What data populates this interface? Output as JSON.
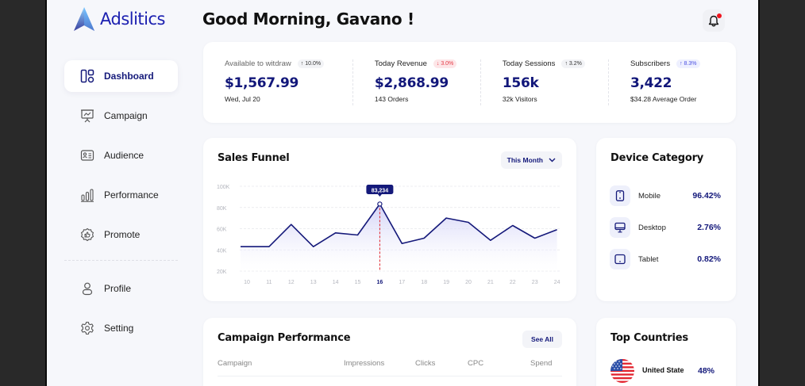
{
  "app": {
    "name": "Adslitics"
  },
  "header": {
    "greeting": "Good Morning, Gavano !",
    "notification_icon": "bell-icon",
    "has_unread": true
  },
  "sidebar": {
    "items": [
      {
        "label": "Dashboard",
        "icon": "dashboard-icon",
        "active": true
      },
      {
        "label": "Campaign",
        "icon": "presentation-chart-icon",
        "active": false
      },
      {
        "label": "Audience",
        "icon": "id-card-icon",
        "active": false
      },
      {
        "label": "Performance",
        "icon": "bar-chart-icon",
        "active": false
      },
      {
        "label": "Promote",
        "icon": "thumbs-up-badge-icon",
        "active": false
      }
    ],
    "bottom_items": [
      {
        "label": "Profile",
        "icon": "user-icon"
      },
      {
        "label": "Setting",
        "icon": "gear-icon"
      }
    ]
  },
  "stats": [
    {
      "label": "Available to witdraw",
      "badge": "↑ 10.0%",
      "trend": "up",
      "value": "$1,567.99",
      "sub": "Wed, Jul 20"
    },
    {
      "label": "Today Revenue",
      "badge": "↓ 3.0%",
      "trend": "down",
      "value": "$2,868.99",
      "sub": "143 Orders"
    },
    {
      "label": "Today Sessions",
      "badge": "↑ 3.2%",
      "trend": "up",
      "value": "156k",
      "sub": "32k Visitors"
    },
    {
      "label": "Subscribers",
      "badge": "↑ 8.3%",
      "trend": "up-accent",
      "value": "3,422",
      "sub": "$34.28 Average Order"
    }
  ],
  "sales_funnel": {
    "title": "Sales Funnel",
    "period": "This Month",
    "tooltip": "83,234"
  },
  "chart_data": {
    "type": "area",
    "title": "Sales Funnel",
    "x": [
      10,
      11,
      12,
      13,
      14,
      15,
      16,
      17,
      18,
      19,
      20,
      21,
      22,
      23,
      24
    ],
    "values": [
      43000,
      43000,
      64000,
      43000,
      56000,
      54000,
      83234,
      46000,
      51000,
      70000,
      66000,
      49000,
      63000,
      51000,
      59000
    ],
    "y_ticks": [
      "20K",
      "40K",
      "60K",
      "80K",
      "100K"
    ],
    "ylim": [
      20000,
      100000
    ],
    "highlight_x": 16,
    "highlight_label": "83,234",
    "grid": true,
    "line_color": "#15197a",
    "highlight_color": "#e0242c"
  },
  "device_category": {
    "title": "Device Category",
    "items": [
      {
        "name": "Mobile",
        "pct": "96.42%",
        "icon": "smartphone-icon"
      },
      {
        "name": "Desktop",
        "pct": "2.76%",
        "icon": "monitor-icon"
      },
      {
        "name": "Tablet",
        "pct": "0.82%",
        "icon": "tablet-icon"
      }
    ]
  },
  "campaign_performance": {
    "title": "Campaign Performance",
    "see_all": "See All",
    "columns": [
      "Campaign",
      "Impressions",
      "Clicks",
      "CPC",
      "Spend"
    ]
  },
  "top_countries": {
    "title": "Top Countries",
    "items": [
      {
        "name": "United State",
        "pct": "48%",
        "flag": "us-flag-icon"
      }
    ]
  }
}
